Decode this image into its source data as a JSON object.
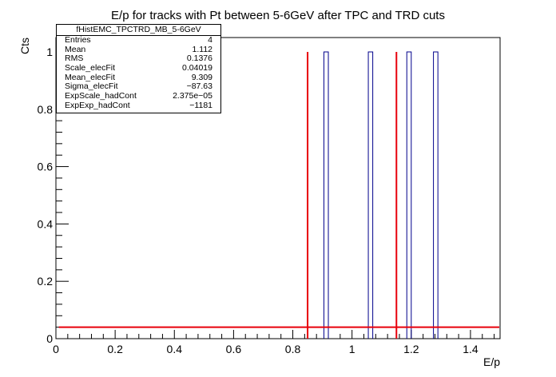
{
  "chart_data": {
    "type": "bar",
    "title": "E/p for tracks with Pt between 5-6GeV after TPC and TRD cuts",
    "xlabel": "E/p",
    "ylabel": "Cts",
    "xlim": [
      0,
      1.5
    ],
    "ylim": [
      0,
      1.05
    ],
    "x_ticks": [
      "0",
      "0.2",
      "0.4",
      "0.6",
      "0.8",
      "1",
      "1.2",
      "1.4"
    ],
    "y_ticks": [
      "0",
      "0.2",
      "0.4",
      "0.6",
      "0.8",
      "1"
    ],
    "histogram": {
      "color": "#00008b",
      "bins": [
        {
          "low": 0.905,
          "high": 0.92,
          "value": 1
        },
        {
          "low": 1.055,
          "high": 1.07,
          "value": 1
        },
        {
          "low": 1.185,
          "high": 1.2,
          "value": 1
        },
        {
          "low": 1.275,
          "high": 1.29,
          "value": 1
        }
      ]
    },
    "cut_lines": {
      "color": "#e8000b",
      "x": [
        0.85,
        1.15
      ],
      "y_top": 1.0
    },
    "fit_line": {
      "color": "#e8000b",
      "y": 0.04,
      "x_range": [
        0.01,
        1.5
      ]
    },
    "grid": false,
    "legend": "none"
  },
  "stats_box": {
    "title": "fHistEMC_TPCTRD_MB_5-6GeV",
    "rows": [
      {
        "key": "Entries",
        "value": "4"
      },
      {
        "key": "Mean",
        "value": "1.112"
      },
      {
        "key": "RMS",
        "value": "0.1376"
      },
      {
        "key": "Scale_elecFit",
        "value": "0.04019"
      },
      {
        "key": "Mean_elecFit",
        "value": "9.309"
      },
      {
        "key": "Sigma_elecFit",
        "value": "−87.63"
      },
      {
        "key": "ExpScale_hadCont",
        "value": "2.375e−05"
      },
      {
        "key": "ExpExp_hadCont",
        "value": "−1181"
      }
    ]
  }
}
